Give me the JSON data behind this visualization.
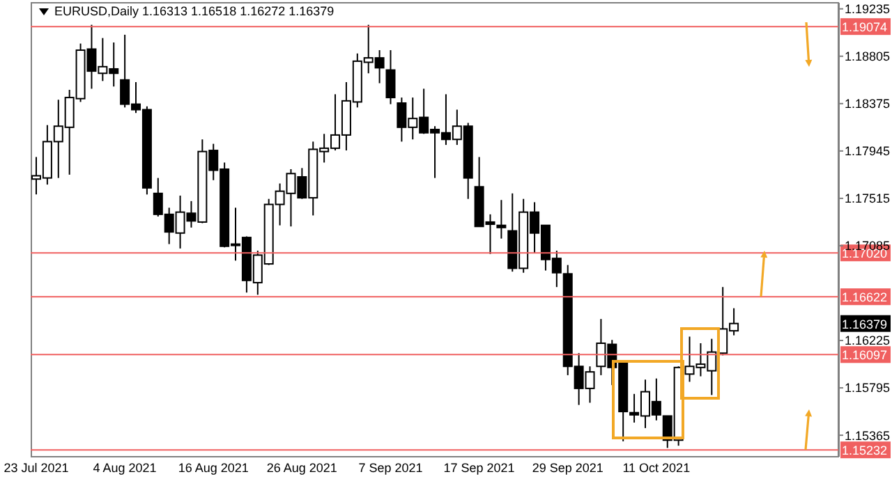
{
  "chart_data": {
    "type": "candlestick",
    "title": "EURUSD,Daily 1.16313 1.16518 1.16272 1.16379",
    "categories": [
      "23 Jul 2021",
      null,
      null,
      null,
      null,
      null,
      null,
      null,
      "4 Aug 2021",
      null,
      null,
      null,
      null,
      null,
      null,
      null,
      "16 Aug 2021",
      null,
      null,
      null,
      null,
      null,
      null,
      null,
      "26 Aug 2021",
      null,
      null,
      null,
      null,
      null,
      null,
      null,
      "7 Sep 2021",
      null,
      null,
      null,
      null,
      null,
      null,
      null,
      "17 Sep 2021",
      null,
      null,
      null,
      null,
      null,
      null,
      null,
      "29 Sep 2021",
      null,
      null,
      null,
      null,
      null,
      null,
      null,
      "11 Oct 2021",
      null,
      null,
      null,
      null,
      null,
      null,
      null,
      null,
      null,
      null,
      null,
      null,
      null,
      null,
      null,
      null
    ],
    "color": "#000000",
    "ohlc": [
      [
        1.1769,
        1.1789,
        1.1755,
        1.1772
      ],
      [
        1.177,
        1.1818,
        1.1764,
        1.1803
      ],
      [
        1.1803,
        1.1841,
        1.177,
        1.1817
      ],
      [
        1.1816,
        1.185,
        1.1773,
        1.1843
      ],
      [
        1.1842,
        1.1892,
        1.1839,
        1.1886
      ],
      [
        1.1887,
        1.1909,
        1.1851,
        1.1867
      ],
      [
        1.1865,
        1.1897,
        1.1858,
        1.1871
      ],
      [
        1.1869,
        1.1893,
        1.1853,
        1.1865
      ],
      [
        1.1859,
        1.19,
        1.1834,
        1.1837
      ],
      [
        1.1837,
        1.1857,
        1.1829,
        1.1832
      ],
      [
        1.1832,
        1.1835,
        1.1755,
        1.1761
      ],
      [
        1.1756,
        1.177,
        1.1735,
        1.1737
      ],
      [
        1.1737,
        1.1743,
        1.171,
        1.1721
      ],
      [
        1.172,
        1.1754,
        1.1706,
        1.1739
      ],
      [
        1.1738,
        1.1749,
        1.1725,
        1.1731
      ],
      [
        1.173,
        1.1805,
        1.1729,
        1.1794
      ],
      [
        1.1795,
        1.1801,
        1.1768,
        1.1777
      ],
      [
        1.1778,
        1.1784,
        1.1707,
        1.1708
      ],
      [
        1.171,
        1.1743,
        1.1695,
        1.171
      ],
      [
        1.1716,
        1.1717,
        1.1666,
        1.1677
      ],
      [
        1.1675,
        1.1704,
        1.1664,
        1.17
      ],
      [
        1.1692,
        1.1751,
        1.1691,
        1.1746
      ],
      [
        1.1746,
        1.1765,
        1.1727,
        1.1758
      ],
      [
        1.1756,
        1.1778,
        1.1726,
        1.1774
      ],
      [
        1.1771,
        1.1779,
        1.1751,
        1.1752
      ],
      [
        1.1752,
        1.1803,
        1.1736,
        1.1796
      ],
      [
        1.1794,
        1.181,
        1.1784,
        1.1797
      ],
      [
        1.1797,
        1.1846,
        1.1795,
        1.1809
      ],
      [
        1.1809,
        1.1857,
        1.1795,
        1.184
      ],
      [
        1.1839,
        1.1883,
        1.1834,
        1.1876
      ],
      [
        1.1875,
        1.1909,
        1.1865,
        1.1879
      ],
      [
        1.1879,
        1.1886,
        1.1856,
        1.187
      ],
      [
        1.1868,
        1.1886,
        1.1837,
        1.1843
      ],
      [
        1.1838,
        1.1843,
        1.1803,
        1.1816
      ],
      [
        1.1816,
        1.1843,
        1.1805,
        1.1824
      ],
      [
        1.1825,
        1.1851,
        1.181,
        1.1811
      ],
      [
        1.1814,
        1.1817,
        1.177,
        1.1811
      ],
      [
        1.1811,
        1.1846,
        1.18,
        1.1805
      ],
      [
        1.1805,
        1.1832,
        1.18,
        1.1817
      ],
      [
        1.1817,
        1.182,
        1.1751,
        1.177
      ],
      [
        1.1762,
        1.1789,
        1.1726,
        1.1726
      ],
      [
        1.173,
        1.1737,
        1.1701,
        1.1728
      ],
      [
        1.1727,
        1.175,
        1.1715,
        1.1725
      ],
      [
        1.1722,
        1.1756,
        1.1685,
        1.1688
      ],
      [
        1.1688,
        1.1751,
        1.1684,
        1.1739
      ],
      [
        1.1739,
        1.1748,
        1.1702,
        1.172
      ],
      [
        1.1727,
        1.1727,
        1.1686,
        1.1696
      ],
      [
        1.1697,
        1.1704,
        1.1671,
        1.1684
      ],
      [
        1.1683,
        1.1691,
        1.1591,
        1.1599
      ],
      [
        1.1599,
        1.1611,
        1.1564,
        1.1579
      ],
      [
        1.1579,
        1.1599,
        1.1566,
        1.1594
      ],
      [
        1.1599,
        1.1642,
        1.1591,
        1.162
      ],
      [
        1.1619,
        1.1623,
        1.1582,
        1.1598
      ],
      [
        1.1602,
        1.1603,
        1.1531,
        1.1558
      ],
      [
        1.1557,
        1.1574,
        1.1548,
        1.1555
      ],
      [
        1.1554,
        1.1587,
        1.1543,
        1.1576
      ],
      [
        1.1567,
        1.1588,
        1.155,
        1.1555
      ],
      [
        1.1554,
        1.1554,
        1.1525,
        1.1532
      ],
      [
        1.1532,
        1.1599,
        1.1527,
        1.1598
      ],
      [
        1.1592,
        1.1626,
        1.1585,
        1.1599
      ],
      [
        1.1598,
        1.162,
        1.159,
        1.1601
      ],
      [
        1.1595,
        1.1624,
        1.1573,
        1.1612
      ],
      [
        1.1611,
        1.1671,
        1.1609,
        1.1633
      ],
      [
        1.16313,
        1.16518,
        1.16272,
        1.16379
      ],
      null,
      null,
      null,
      null,
      null,
      null,
      null,
      null,
      null
    ],
    "ylim": [
      1.1517,
      1.1929
    ],
    "yticks": [
      1.15365,
      1.15795,
      1.16225,
      1.17085,
      1.17515,
      1.17945,
      1.18375,
      1.18805,
      1.19235
    ],
    "ref_lines": [
      {
        "axis": "y",
        "value": 1.19074,
        "label": "1.19074",
        "color": "#f06060"
      },
      {
        "axis": "y",
        "value": 1.1702,
        "label": "1.17020",
        "color": "#f06060"
      },
      {
        "axis": "y",
        "value": 1.16622,
        "label": "1.16622",
        "color": "#f06060"
      },
      {
        "axis": "y",
        "value": 1.16097,
        "label": "1.16097",
        "color": "#f06060"
      },
      {
        "axis": "y",
        "value": 1.15232,
        "label": "1.15232",
        "color": "#f06060"
      }
    ],
    "annotations": [
      "1.16379"
    ]
  }
}
